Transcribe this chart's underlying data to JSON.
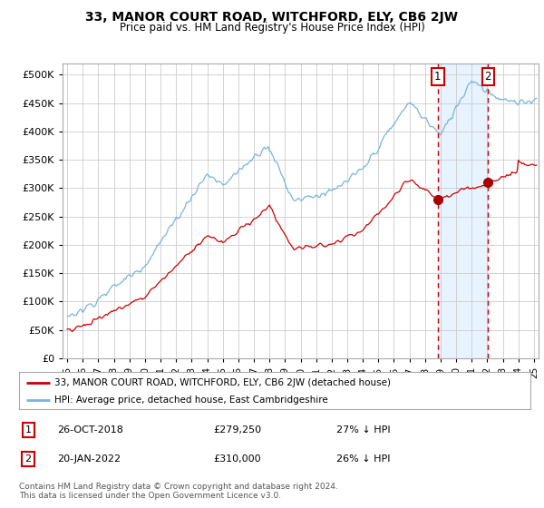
{
  "title": "33, MANOR COURT ROAD, WITCHFORD, ELY, CB6 2JW",
  "subtitle": "Price paid vs. HM Land Registry's House Price Index (HPI)",
  "legend_line1": "33, MANOR COURT ROAD, WITCHFORD, ELY, CB6 2JW (detached house)",
  "legend_line2": "HPI: Average price, detached house, East Cambridgeshire",
  "transaction1_date": "26-OCT-2018",
  "transaction1_price": "£279,250",
  "transaction1_hpi": "27% ↓ HPI",
  "transaction2_date": "20-JAN-2022",
  "transaction2_price": "£310,000",
  "transaction2_hpi": "26% ↓ HPI",
  "footnote": "Contains HM Land Registry data © Crown copyright and database right 2024.\nThis data is licensed under the Open Government Licence v3.0.",
  "hpi_color": "#7ab4d8",
  "price_color": "#cc0000",
  "marker_color": "#aa0000",
  "vline_color": "#cc0000",
  "highlight_color": "#ddeeff",
  "ylim": [
    0,
    520000
  ],
  "yticks": [
    0,
    50000,
    100000,
    150000,
    200000,
    250000,
    300000,
    350000,
    400000,
    450000,
    500000
  ],
  "transaction1_x": 2018.82,
  "transaction2_x": 2022.05,
  "transaction1_y": 279250,
  "transaction2_y": 310000,
  "xlim_left": 1994.7,
  "xlim_right": 2025.3
}
